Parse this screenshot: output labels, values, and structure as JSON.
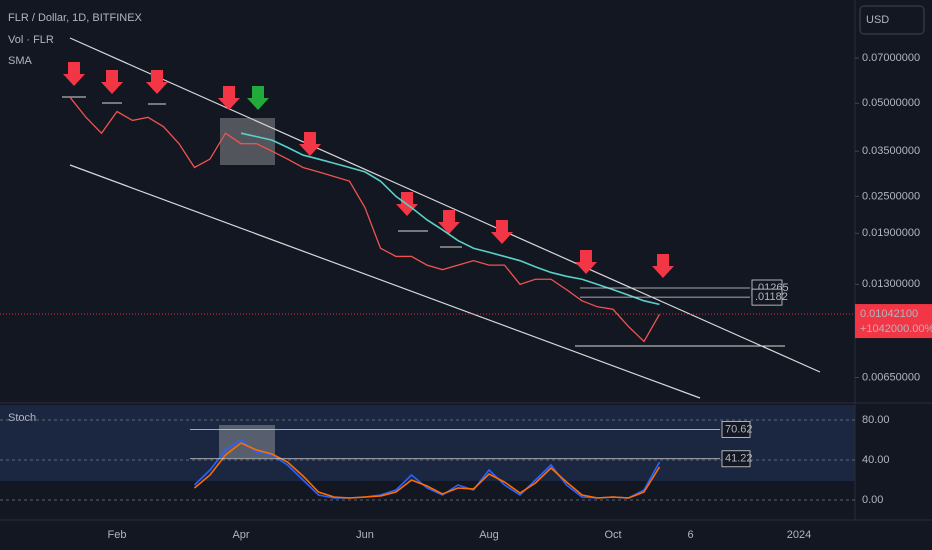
{
  "chart_data": [
    {
      "type": "line",
      "title": "FLR / Dollar, 1D, BITFINEX",
      "volume_label": "Vol · FLR",
      "currency": "USD",
      "log_scale": true,
      "grid": false,
      "categories": [
        null,
        null,
        null,
        null,
        "Feb",
        null,
        null,
        null,
        null,
        null,
        null,
        null,
        "Apr",
        null,
        null,
        null,
        null,
        null,
        null,
        null,
        "Jun",
        null,
        null,
        null,
        null,
        null,
        null,
        null,
        "Aug",
        null,
        null,
        null,
        null,
        null,
        null,
        null,
        "Oct",
        null,
        null,
        null,
        null,
        "6",
        null,
        null,
        null,
        null,
        null,
        null,
        "2024",
        null,
        null,
        null
      ],
      "series": [
        {
          "color": "#ef5350",
          "values": [
            null,
            0.052,
            0.045,
            0.04,
            0.047,
            0.044,
            0.045,
            0.042,
            0.037,
            0.031,
            0.033,
            0.04,
            0.037,
            0.037,
            0.035,
            0.033,
            0.031,
            0.03,
            0.029,
            0.028,
            0.023,
            0.017,
            0.016,
            0.016,
            0.015,
            0.0145,
            0.015,
            0.0155,
            0.015,
            0.015,
            0.013,
            0.0135,
            0.0135,
            0.0125,
            0.0115,
            0.011,
            0.0108,
            0.0095,
            0.0085,
            0.0104,
            null,
            null,
            null,
            null,
            null,
            null,
            null,
            null,
            null,
            null,
            null,
            null
          ]
        },
        {
          "name": "SMA",
          "color": "#5ad0c6",
          "values": [
            null,
            null,
            null,
            null,
            null,
            null,
            null,
            null,
            null,
            null,
            null,
            null,
            0.04,
            0.039,
            0.038,
            0.036,
            0.034,
            0.033,
            0.032,
            0.031,
            0.03,
            0.028,
            0.025,
            0.023,
            0.021,
            0.0195,
            0.018,
            0.017,
            0.0165,
            0.016,
            0.0155,
            0.0148,
            0.0142,
            0.0138,
            0.0135,
            0.013,
            0.0125,
            0.012,
            0.0115,
            0.0112,
            null,
            null,
            null,
            null,
            null,
            null,
            null,
            null,
            null,
            null,
            null,
            null
          ]
        }
      ],
      "ylim": [
        0.0055,
        0.1
      ],
      "yticks": [
        {
          "value": 0.07,
          "label": "0.07000000"
        },
        {
          "value": 0.05,
          "label": "0.05000000"
        },
        {
          "value": 0.035,
          "label": "0.03500000"
        },
        {
          "value": 0.025,
          "label": "0.02500000"
        },
        {
          "value": 0.019,
          "label": "0.01900000"
        },
        {
          "value": 0.013,
          "label": "0.01300000"
        },
        {
          "value": 0.0065,
          "label": "0.00650000"
        }
      ],
      "levels": [
        {
          "value": 0.01265,
          "label": ".01265"
        },
        {
          "value": 0.01182,
          "label": ".01182"
        }
      ],
      "last_price": {
        "value": 0.010421,
        "label": "0.01042100"
      },
      "change": {
        "value": 1042000,
        "label": "+1042000.00%"
      }
    },
    {
      "type": "line",
      "title": "Stoch",
      "series": [
        {
          "color": "#2962ff",
          "values": [
            null,
            null,
            null,
            null,
            null,
            null,
            null,
            null,
            null,
            15,
            30,
            50,
            60,
            48,
            45,
            35,
            20,
            5,
            2,
            2,
            3,
            5,
            10,
            25,
            12,
            5,
            15,
            10,
            30,
            15,
            5,
            20,
            35,
            15,
            3,
            2,
            3,
            2,
            10,
            38,
            null,
            null,
            null,
            null,
            null,
            null,
            null,
            null,
            null,
            null,
            null,
            null
          ]
        },
        {
          "color": "#ff6d00",
          "values": [
            null,
            null,
            null,
            null,
            null,
            null,
            null,
            null,
            null,
            12,
            25,
            45,
            57,
            50,
            46,
            38,
            24,
            8,
            3,
            2,
            3,
            4,
            8,
            20,
            14,
            6,
            12,
            11,
            26,
            18,
            7,
            17,
            32,
            18,
            5,
            2,
            3,
            2,
            8,
            33,
            null,
            null,
            null,
            null,
            null,
            null,
            null,
            null,
            null,
            null,
            null,
            null
          ]
        }
      ],
      "ylim": [
        -15,
        95
      ],
      "yticks": [
        {
          "value": 80,
          "label": "80.00"
        },
        {
          "value": 40,
          "label": "40.00"
        },
        {
          "value": 0,
          "label": "0.00"
        }
      ],
      "levels": [
        {
          "value": 70.62,
          "label": "70.62"
        },
        {
          "value": 41.22,
          "label": "41.22"
        }
      ]
    }
  ]
}
